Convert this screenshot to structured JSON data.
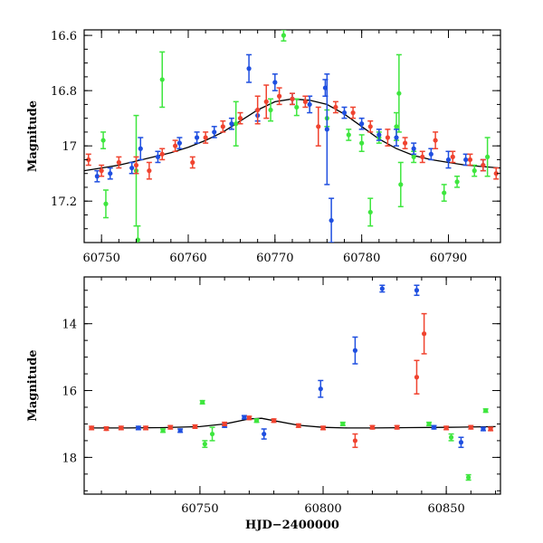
{
  "colors": {
    "blue": "#1f4fe0",
    "green": "#3ee63e",
    "red": "#f0432f",
    "model": "#000000"
  },
  "chart_data": [
    {
      "type": "scatter",
      "xlabel": "",
      "ylabel": "Magnitude",
      "xlim": [
        60748,
        60796
      ],
      "ylim": [
        17.35,
        16.58
      ],
      "inverted_y": true,
      "xticks": [
        60750,
        60760,
        60770,
        60780,
        60790
      ],
      "xtick_labels": [
        "60750",
        "60760",
        "60770",
        "60780",
        "60790"
      ],
      "yticks": [
        16.6,
        16.8,
        17,
        17.2
      ],
      "ytick_labels": [
        "16.6",
        "16.8",
        "17",
        "17.2"
      ],
      "model_curve": {
        "x": [
          60748,
          60750,
          60752,
          60754,
          60756,
          60758,
          60760,
          60762,
          60764,
          60766,
          60768,
          60770,
          60772,
          60774,
          60776,
          60778,
          60780,
          60782,
          60784,
          60786,
          60788,
          60790,
          60792,
          60794,
          60796
        ],
        "y": [
          17.09,
          17.08,
          17.07,
          17.055,
          17.04,
          17.025,
          17.005,
          16.98,
          16.95,
          16.91,
          16.87,
          16.84,
          16.83,
          16.835,
          16.85,
          16.885,
          16.93,
          16.975,
          17.01,
          17.035,
          17.05,
          17.06,
          17.07,
          17.075,
          17.08
        ]
      },
      "series": [
        {
          "name": "",
          "color": "blue",
          "points": [
            {
              "x": 60749.5,
              "y": 17.11,
              "err": 0.02
            },
            {
              "x": 60751.0,
              "y": 17.1,
              "err": 0.02
            },
            {
              "x": 60753.5,
              "y": 17.08,
              "err": 0.02
            },
            {
              "x": 60754.5,
              "y": 17.01,
              "err": 0.04
            },
            {
              "x": 60756.5,
              "y": 17.04,
              "err": 0.02
            },
            {
              "x": 60759.0,
              "y": 16.99,
              "err": 0.02
            },
            {
              "x": 60761.0,
              "y": 16.97,
              "err": 0.02
            },
            {
              "x": 60763.0,
              "y": 16.95,
              "err": 0.02
            },
            {
              "x": 60765.0,
              "y": 16.92,
              "err": 0.02
            },
            {
              "x": 60767.0,
              "y": 16.72,
              "err": 0.05
            },
            {
              "x": 60768.0,
              "y": 16.89,
              "err": 0.02
            },
            {
              "x": 60770.0,
              "y": 16.77,
              "err": 0.03
            },
            {
              "x": 60772.0,
              "y": 16.83,
              "err": 0.02
            },
            {
              "x": 60774.0,
              "y": 16.85,
              "err": 0.03
            },
            {
              "x": 60775.8,
              "y": 16.79,
              "err": 0.03
            },
            {
              "x": 60776.0,
              "y": 16.94,
              "err": 0.2
            },
            {
              "x": 60776.5,
              "y": 17.27,
              "err": 0.08
            },
            {
              "x": 60778.0,
              "y": 16.88,
              "err": 0.02
            },
            {
              "x": 60780.0,
              "y": 16.92,
              "err": 0.02
            },
            {
              "x": 60782.0,
              "y": 16.96,
              "err": 0.02
            },
            {
              "x": 60784.0,
              "y": 16.97,
              "err": 0.03
            },
            {
              "x": 60786.0,
              "y": 17.01,
              "err": 0.02
            },
            {
              "x": 60788.0,
              "y": 17.03,
              "err": 0.02
            },
            {
              "x": 60790.0,
              "y": 17.05,
              "err": 0.03
            },
            {
              "x": 60792.0,
              "y": 17.05,
              "err": 0.02
            },
            {
              "x": 60794.0,
              "y": 17.07,
              "err": 0.02
            }
          ]
        },
        {
          "name": "",
          "color": "green",
          "points": [
            {
              "x": 60750.2,
              "y": 16.98,
              "err": 0.03
            },
            {
              "x": 60750.5,
              "y": 17.21,
              "err": 0.05
            },
            {
              "x": 60754.0,
              "y": 17.09,
              "err": 0.2
            },
            {
              "x": 60754.2,
              "y": 17.34,
              "err": 0.05
            },
            {
              "x": 60757.0,
              "y": 16.76,
              "err": 0.1
            },
            {
              "x": 60765.5,
              "y": 16.92,
              "err": 0.08
            },
            {
              "x": 60769.5,
              "y": 16.87,
              "err": 0.04
            },
            {
              "x": 60771.0,
              "y": 16.6,
              "err": 0.02
            },
            {
              "x": 60772.5,
              "y": 16.86,
              "err": 0.03
            },
            {
              "x": 60776.0,
              "y": 16.9,
              "err": 0.03
            },
            {
              "x": 60778.5,
              "y": 16.96,
              "err": 0.02
            },
            {
              "x": 60780.0,
              "y": 16.99,
              "err": 0.03
            },
            {
              "x": 60781.0,
              "y": 17.24,
              "err": 0.05
            },
            {
              "x": 60782.0,
              "y": 16.97,
              "err": 0.02
            },
            {
              "x": 60784.0,
              "y": 16.93,
              "err": 0.05
            },
            {
              "x": 60784.3,
              "y": 16.81,
              "err": 0.14
            },
            {
              "x": 60784.5,
              "y": 17.14,
              "err": 0.08
            },
            {
              "x": 60786.0,
              "y": 17.04,
              "err": 0.02
            },
            {
              "x": 60789.5,
              "y": 17.17,
              "err": 0.03
            },
            {
              "x": 60791.0,
              "y": 17.13,
              "err": 0.02
            },
            {
              "x": 60793.0,
              "y": 17.09,
              "err": 0.02
            },
            {
              "x": 60794.5,
              "y": 17.04,
              "err": 0.07
            }
          ]
        },
        {
          "name": "",
          "color": "red",
          "points": [
            {
              "x": 60748.5,
              "y": 17.05,
              "err": 0.02
            },
            {
              "x": 60750.0,
              "y": 17.09,
              "err": 0.02
            },
            {
              "x": 60752.0,
              "y": 17.06,
              "err": 0.02
            },
            {
              "x": 60754.0,
              "y": 17.07,
              "err": 0.03
            },
            {
              "x": 60755.5,
              "y": 17.09,
              "err": 0.03
            },
            {
              "x": 60757.0,
              "y": 17.03,
              "err": 0.02
            },
            {
              "x": 60758.5,
              "y": 17.0,
              "err": 0.02
            },
            {
              "x": 60760.5,
              "y": 17.06,
              "err": 0.02
            },
            {
              "x": 60762.0,
              "y": 16.97,
              "err": 0.02
            },
            {
              "x": 60764.0,
              "y": 16.93,
              "err": 0.02
            },
            {
              "x": 60766.0,
              "y": 16.9,
              "err": 0.02
            },
            {
              "x": 60768.0,
              "y": 16.87,
              "err": 0.05
            },
            {
              "x": 60769.0,
              "y": 16.84,
              "err": 0.06
            },
            {
              "x": 60770.5,
              "y": 16.82,
              "err": 0.03
            },
            {
              "x": 60772.0,
              "y": 16.83,
              "err": 0.02
            },
            {
              "x": 60773.5,
              "y": 16.84,
              "err": 0.02
            },
            {
              "x": 60775.0,
              "y": 16.93,
              "err": 0.07
            },
            {
              "x": 60777.0,
              "y": 16.86,
              "err": 0.02
            },
            {
              "x": 60779.0,
              "y": 16.88,
              "err": 0.02
            },
            {
              "x": 60781.0,
              "y": 16.93,
              "err": 0.02
            },
            {
              "x": 60783.0,
              "y": 16.97,
              "err": 0.03
            },
            {
              "x": 60785.0,
              "y": 16.99,
              "err": 0.02
            },
            {
              "x": 60787.0,
              "y": 17.04,
              "err": 0.02
            },
            {
              "x": 60788.5,
              "y": 16.98,
              "err": 0.03
            },
            {
              "x": 60790.5,
              "y": 17.04,
              "err": 0.02
            },
            {
              "x": 60792.5,
              "y": 17.05,
              "err": 0.02
            },
            {
              "x": 60794.0,
              "y": 17.07,
              "err": 0.02
            },
            {
              "x": 60795.5,
              "y": 17.1,
              "err": 0.02
            }
          ]
        }
      ]
    },
    {
      "type": "scatter",
      "xlabel": "HJD−2400000",
      "ylabel": "Magnitude",
      "xlim": [
        60703,
        60872
      ],
      "ylim": [
        19.1,
        12.6
      ],
      "inverted_y": true,
      "xticks": [
        60750,
        60800,
        60850
      ],
      "xtick_labels": [
        "60750",
        "60800",
        "60850"
      ],
      "yticks": [
        14,
        16,
        18
      ],
      "ytick_labels": [
        "14",
        "16",
        "18"
      ],
      "model_curve": {
        "x": [
          60705,
          60720,
          60735,
          60750,
          60760,
          60770,
          60775,
          60780,
          60790,
          60800,
          60810,
          60820,
          60835,
          60850,
          60870
        ],
        "y": [
          17.12,
          17.12,
          17.11,
          17.08,
          17.0,
          16.85,
          16.83,
          16.9,
          17.04,
          17.1,
          17.12,
          17.12,
          17.11,
          17.1,
          17.08
        ]
      },
      "series": [
        {
          "name": "",
          "color": "blue",
          "points": [
            {
              "x": 60725,
              "y": 17.12,
              "err": 0.05
            },
            {
              "x": 60742,
              "y": 17.2,
              "err": 0.05
            },
            {
              "x": 60760,
              "y": 17.05,
              "err": 0.05
            },
            {
              "x": 60768,
              "y": 16.8,
              "err": 0.05
            },
            {
              "x": 60776,
              "y": 17.3,
              "err": 0.15
            },
            {
              "x": 60799,
              "y": 15.95,
              "err": 0.25
            },
            {
              "x": 60813,
              "y": 14.8,
              "err": 0.4
            },
            {
              "x": 60824,
              "y": 12.95,
              "err": 0.1
            },
            {
              "x": 60838,
              "y": 13.0,
              "err": 0.15
            },
            {
              "x": 60845,
              "y": 17.1,
              "err": 0.05
            },
            {
              "x": 60856,
              "y": 17.55,
              "err": 0.15
            },
            {
              "x": 60865,
              "y": 17.15,
              "err": 0.05
            }
          ]
        },
        {
          "name": "",
          "color": "green",
          "points": [
            {
              "x": 60735,
              "y": 17.2,
              "err": 0.05
            },
            {
              "x": 60751,
              "y": 16.35,
              "err": 0.05
            },
            {
              "x": 60752,
              "y": 17.6,
              "err": 0.1
            },
            {
              "x": 60755,
              "y": 17.3,
              "err": 0.2
            },
            {
              "x": 60773,
              "y": 16.9,
              "err": 0.05
            },
            {
              "x": 60808,
              "y": 17.0,
              "err": 0.05
            },
            {
              "x": 60843,
              "y": 17.0,
              "err": 0.05
            },
            {
              "x": 60852,
              "y": 17.4,
              "err": 0.1
            },
            {
              "x": 60859,
              "y": 18.6,
              "err": 0.08
            },
            {
              "x": 60866,
              "y": 16.6,
              "err": 0.05
            }
          ]
        },
        {
          "name": "",
          "color": "red",
          "points": [
            {
              "x": 60706,
              "y": 17.12,
              "err": 0.05
            },
            {
              "x": 60712,
              "y": 17.14,
              "err": 0.05
            },
            {
              "x": 60718,
              "y": 17.12,
              "err": 0.05
            },
            {
              "x": 60728,
              "y": 17.12,
              "err": 0.05
            },
            {
              "x": 60738,
              "y": 17.1,
              "err": 0.05
            },
            {
              "x": 60748,
              "y": 17.08,
              "err": 0.05
            },
            {
              "x": 60760,
              "y": 17.0,
              "err": 0.05
            },
            {
              "x": 60770,
              "y": 16.82,
              "err": 0.05
            },
            {
              "x": 60780,
              "y": 16.9,
              "err": 0.05
            },
            {
              "x": 60790,
              "y": 17.05,
              "err": 0.05
            },
            {
              "x": 60800,
              "y": 17.12,
              "err": 0.05
            },
            {
              "x": 60813,
              "y": 17.5,
              "err": 0.2
            },
            {
              "x": 60820,
              "y": 17.1,
              "err": 0.05
            },
            {
              "x": 60830,
              "y": 17.1,
              "err": 0.05
            },
            {
              "x": 60838,
              "y": 15.6,
              "err": 0.5
            },
            {
              "x": 60841,
              "y": 14.3,
              "err": 0.6
            },
            {
              "x": 60850,
              "y": 17.12,
              "err": 0.05
            },
            {
              "x": 60860,
              "y": 17.1,
              "err": 0.05
            },
            {
              "x": 60868,
              "y": 17.15,
              "err": 0.05
            }
          ]
        }
      ]
    }
  ]
}
